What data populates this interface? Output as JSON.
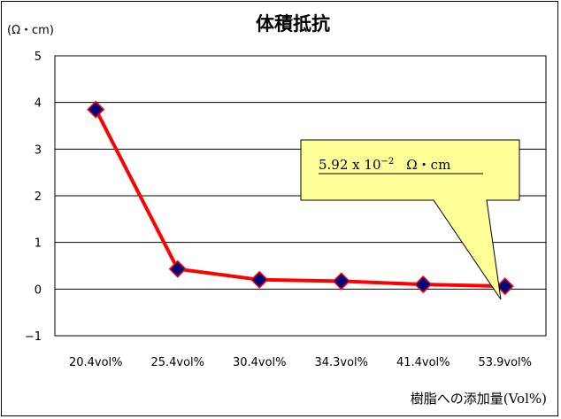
{
  "chart_data": {
    "type": "line",
    "title": "体積抵抗",
    "ylabel": "(Ω・cm)",
    "xlabel": "樹脂への添加量(Vol%)",
    "categories": [
      "20.4vol%",
      "25.4vol%",
      "30.4vol%",
      "34.3vol%",
      "41.4vol%",
      "53.9vol%"
    ],
    "series": [
      {
        "values": [
          3.85,
          0.43,
          0.2,
          0.17,
          0.1,
          0.06
        ]
      }
    ],
    "ylim": [
      -1,
      5
    ],
    "yticks": [
      "5",
      "4",
      "3",
      "2",
      "1",
      "0",
      "−1"
    ],
    "grid": true,
    "legend": "none",
    "annotation": {
      "mantissa": "5.92 x 10",
      "exponent": "−2",
      "unit": "Ω・cm",
      "target_category": "53.9vol%"
    },
    "colors": {
      "line": "#ff0000",
      "marker_fill": "#000080",
      "marker_edge": "#ff0000",
      "callout_fill": "#ffff99"
    }
  }
}
